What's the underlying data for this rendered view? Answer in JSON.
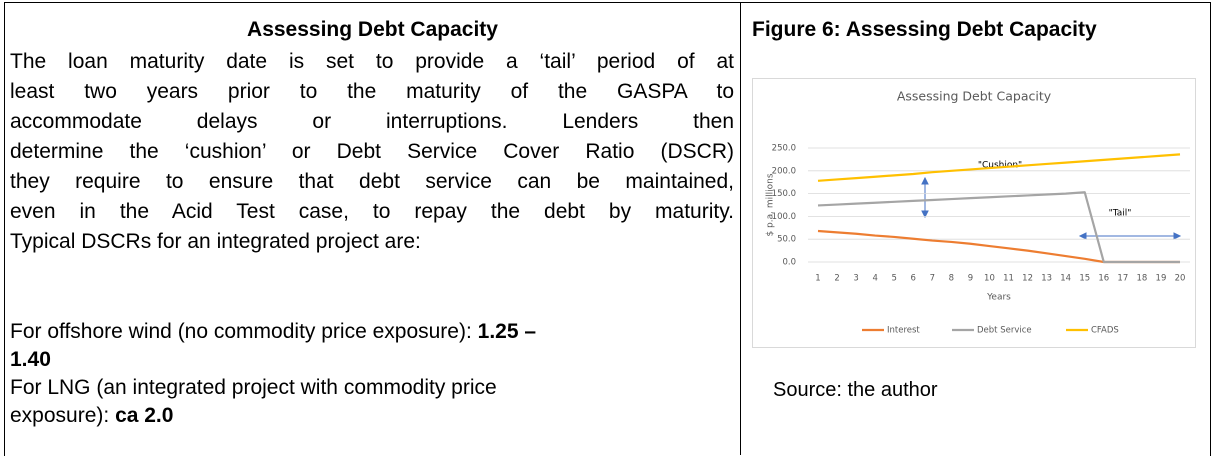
{
  "left": {
    "heading": "Assessing Debt Capacity",
    "paragraph_lines": [
      "The loan maturity date is set to provide a ‘tail’ period of at",
      "least two years prior to the maturity of the GASPA to",
      "accommodate delays or interruptions. Lenders then",
      "determine the ‘cushion’ or Debt Service Cover Ratio (DSCR)",
      "they require to ensure that debt service can be maintained,",
      "even in the Acid Test case, to repay the debt by maturity.",
      "Typical DSCRs for an integrated project are:"
    ],
    "offshore": {
      "text": "For offshore wind (no commodity price exposure):",
      "bold1": "1.25 –",
      "bold2": "1.40"
    },
    "lng": {
      "line1": "For LNG (an integrated project with commodity price",
      "line2": "exposure):",
      "bold": "ca 2.0"
    }
  },
  "right": {
    "heading": "Figure 6: Assessing Debt Capacity",
    "source": "Source: the author",
    "chart_data": {
      "type": "line",
      "title": "Assessing Debt Capacity",
      "xlabel": "Years",
      "ylabel": "$ p.a. millions",
      "categories": [
        "1",
        "2",
        "3",
        "4",
        "5",
        "6",
        "7",
        "8",
        "9",
        "10",
        "11",
        "12",
        "13",
        "14",
        "15",
        "16",
        "17",
        "18",
        "19",
        "20"
      ],
      "ylim": [
        0,
        250
      ],
      "yticks": [
        {
          "value": 0,
          "label": "0.0"
        },
        {
          "value": 50,
          "label": "50.0"
        },
        {
          "value": 100,
          "label": "100.0"
        },
        {
          "value": 150,
          "label": "150.0"
        },
        {
          "value": 200,
          "label": "200.0"
        },
        {
          "value": 250,
          "label": "250.0"
        }
      ],
      "grid": true,
      "legend": "bottom",
      "annotations": [
        "\"Cushion\"",
        "\"Tail\""
      ],
      "series": [
        {
          "name": "Interest",
          "color": "#ed7d31",
          "values": [
            68,
            65,
            62,
            58,
            55,
            51,
            47,
            44,
            40,
            35,
            30,
            25,
            19,
            13,
            7,
            0,
            0,
            0,
            0,
            0
          ]
        },
        {
          "name": "Debt Service",
          "color": "#a5a5a5",
          "values": [
            124,
            126,
            128,
            130,
            132,
            134,
            136,
            138,
            140,
            142,
            144,
            146,
            148,
            150,
            153,
            0,
            0,
            0,
            0,
            0
          ]
        },
        {
          "name": "CFADS",
          "color": "#ffc000",
          "values": [
            178,
            181,
            184,
            187,
            190,
            193,
            197,
            200,
            203,
            206,
            209,
            212,
            215,
            218,
            221,
            224,
            227,
            230,
            233,
            236
          ]
        }
      ]
    }
  }
}
